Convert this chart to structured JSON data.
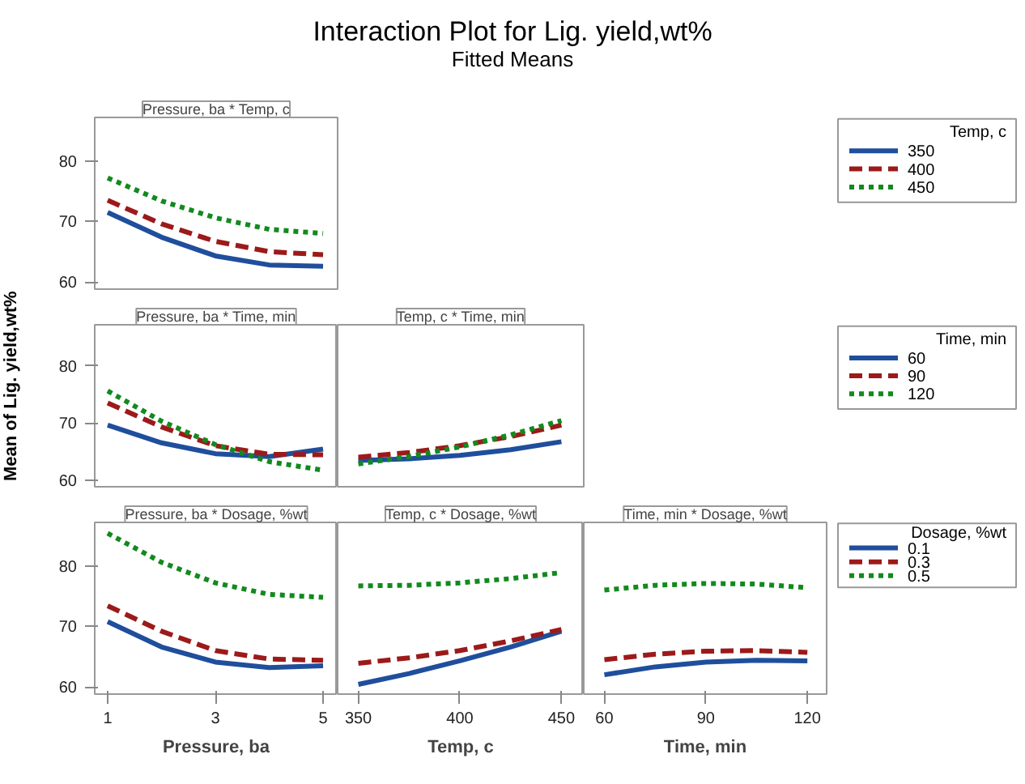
{
  "chart_data": [
    {
      "type": "line",
      "title": "Pressure, ba * Temp, c",
      "annotations": [
        "Interaction Plot for Lig. yield,wt%",
        "Fitted Means"
      ],
      "x": [
        1,
        2,
        3,
        4,
        5
      ],
      "xlim": [
        0.76,
        5.27
      ],
      "ylim": [
        58.8,
        87.2
      ],
      "yticks": [
        60,
        70,
        80
      ],
      "tick_labels": "y",
      "legend": "right",
      "legend_title": "Temp, c",
      "series": [
        {
          "name": "350",
          "color": "#1f4e9c",
          "line_style": "solid",
          "values": [
            71.5,
            67.4,
            64.3,
            62.8,
            62.6
          ]
        },
        {
          "name": "400",
          "color": "#9c1a1a",
          "line_style": "dashed",
          "values": [
            73.5,
            69.6,
            66.7,
            65.0,
            64.5
          ]
        },
        {
          "name": "450",
          "color": "#128a1e",
          "line_style": "dotted",
          "values": [
            77.2,
            73.4,
            70.6,
            68.7,
            68.0
          ]
        }
      ]
    },
    {
      "type": "line",
      "title": "Pressure, ba * Time, min",
      "ylabel": "Mean of Lig. yield,wt%",
      "x": [
        1,
        2,
        3,
        4,
        5
      ],
      "xlim": [
        0.76,
        5.27
      ],
      "ylim": [
        58.8,
        87.2
      ],
      "yticks": [
        60,
        70,
        80
      ],
      "tick_labels": "y",
      "series": [
        {
          "color": "#1f4e9c",
          "line_style": "solid",
          "values": [
            69.6,
            66.5,
            64.6,
            64.1,
            65.4
          ]
        },
        {
          "color": "#9c1a1a",
          "line_style": "dashed",
          "values": [
            73.5,
            69.3,
            66.0,
            64.5,
            64.4
          ]
        },
        {
          "color": "#128a1e",
          "line_style": "dotted",
          "values": [
            75.6,
            70.3,
            66.2,
            63.2,
            61.7
          ]
        }
      ]
    },
    {
      "type": "line",
      "title": "Temp, c * Time, min",
      "x": [
        350,
        375,
        400,
        425,
        450
      ],
      "xlim": [
        339.8,
        461
      ],
      "ylim": [
        58.8,
        87.2
      ],
      "tick_labels": false,
      "legend": "right",
      "legend_title": "Time, min",
      "series": [
        {
          "name": "60",
          "color": "#1f4e9c",
          "line_style": "solid",
          "values": [
            63.4,
            63.7,
            64.3,
            65.3,
            66.7
          ]
        },
        {
          "name": "90",
          "color": "#9c1a1a",
          "line_style": "dashed",
          "values": [
            64.0,
            64.8,
            66.0,
            67.6,
            69.6
          ]
        },
        {
          "name": "120",
          "color": "#128a1e",
          "line_style": "dotted",
          "values": [
            62.8,
            64.1,
            65.8,
            67.9,
            70.4
          ]
        }
      ]
    },
    {
      "type": "line",
      "title": "Pressure, ba * Dosage, %wt",
      "xlabel": "Pressure, ba",
      "x": [
        1,
        2,
        3,
        4,
        5
      ],
      "xlim": [
        0.76,
        5.27
      ],
      "xticks": [
        1,
        3,
        5
      ],
      "ylim": [
        58.8,
        87.2
      ],
      "yticks": [
        60,
        70,
        80
      ],
      "series": [
        {
          "color": "#1f4e9c",
          "line_style": "solid",
          "values": [
            70.8,
            66.6,
            64.1,
            63.2,
            63.5
          ]
        },
        {
          "color": "#9c1a1a",
          "line_style": "dashed",
          "values": [
            73.4,
            69.2,
            66.0,
            64.6,
            64.4
          ]
        },
        {
          "color": "#128a1e",
          "line_style": "dotted",
          "values": [
            85.4,
            80.6,
            77.2,
            75.3,
            74.8
          ]
        }
      ]
    },
    {
      "type": "line",
      "title": "Temp, c * Dosage, %wt",
      "xlabel": "Temp, c",
      "x": [
        350,
        375,
        400,
        425,
        450
      ],
      "xlim": [
        339.8,
        461
      ],
      "xticks": [
        350,
        400,
        450
      ],
      "ylim": [
        58.8,
        87.2
      ],
      "tick_labels": "x",
      "series": [
        {
          "color": "#1f4e9c",
          "line_style": "solid",
          "values": [
            60.4,
            62.2,
            64.3,
            66.6,
            69.2
          ]
        },
        {
          "color": "#9c1a1a",
          "line_style": "dashed",
          "values": [
            63.9,
            64.8,
            66.0,
            67.6,
            69.5
          ]
        },
        {
          "color": "#128a1e",
          "line_style": "dotted",
          "values": [
            76.7,
            76.8,
            77.2,
            77.9,
            78.9
          ]
        }
      ]
    },
    {
      "type": "line",
      "title": "Time, min * Dosage, %wt",
      "xlabel": "Time, min",
      "x": [
        60,
        75,
        90,
        105,
        120
      ],
      "xlim": [
        53.9,
        125.7
      ],
      "xticks": [
        60,
        90,
        120
      ],
      "ylim": [
        58.8,
        87.2
      ],
      "tick_labels": "x",
      "legend": "right",
      "legend_title": "Dosage, %wt",
      "series": [
        {
          "name": "0.1",
          "color": "#1f4e9c",
          "line_style": "solid",
          "values": [
            62.0,
            63.3,
            64.1,
            64.4,
            64.3
          ]
        },
        {
          "name": "0.3",
          "color": "#9c1a1a",
          "line_style": "dashed",
          "values": [
            64.5,
            65.4,
            65.9,
            66.0,
            65.7
          ]
        },
        {
          "name": "0.5",
          "color": "#128a1e",
          "line_style": "dotted",
          "values": [
            76.0,
            76.8,
            77.1,
            77.0,
            76.4
          ]
        }
      ]
    }
  ]
}
